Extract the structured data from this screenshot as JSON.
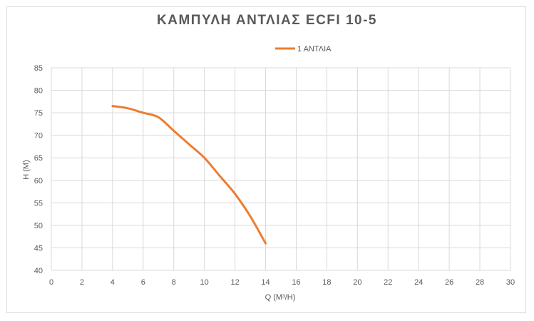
{
  "chart_data": {
    "type": "line",
    "title": "ΚΑΜΠΥΛΗ ΑΝΤΛΙΑΣ ECFI 10-5",
    "xlabel": "Q (M³/H)",
    "ylabel": "H (M)",
    "xlim": [
      0,
      30
    ],
    "ylim": [
      40,
      85
    ],
    "xticks": [
      0,
      2,
      4,
      6,
      8,
      10,
      12,
      14,
      16,
      18,
      20,
      22,
      24,
      26,
      28,
      30
    ],
    "yticks": [
      40,
      45,
      50,
      55,
      60,
      65,
      70,
      75,
      80,
      85
    ],
    "grid": true,
    "legend_position": "top",
    "series": [
      {
        "name": "1 ΑΝΤΛΙΑ",
        "color": "#ED7D31",
        "x": [
          4,
          5,
          6,
          7,
          8,
          9,
          10,
          11,
          12,
          13,
          14
        ],
        "y": [
          76.5,
          76,
          75,
          74,
          71,
          68,
          65,
          61,
          57,
          52,
          46
        ]
      }
    ]
  }
}
